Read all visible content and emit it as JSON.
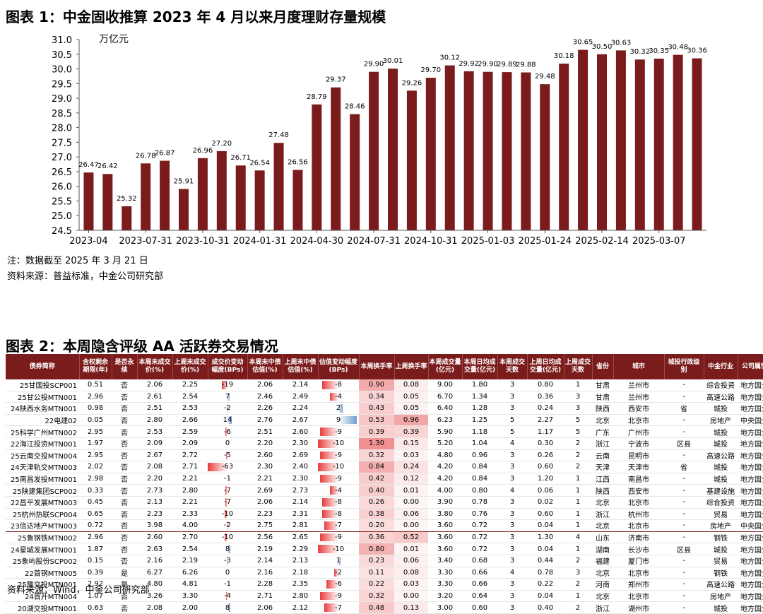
{
  "figure1": {
    "title": "图表 1：中金固收推算 2023 年 4 月以来月度理财存量规模",
    "note": "注：数据截至 2025 年 3 月 21 日",
    "source": "资料来源：普益标准，中金公司研究部"
  },
  "chart_data": {
    "type": "bar",
    "unit_label": "万亿元",
    "values": [
      26.47,
      26.42,
      25.32,
      26.78,
      26.87,
      25.91,
      26.96,
      27.2,
      26.71,
      26.54,
      27.48,
      26.56,
      28.79,
      29.37,
      28.46,
      29.9,
      30.01,
      29.26,
      29.7,
      30.12,
      29.92,
      29.9,
      29.89,
      29.88,
      29.48,
      30.18,
      30.65,
      30.5,
      30.63,
      30.32,
      30.35,
      30.48,
      30.36
    ],
    "x_tick_labels": [
      "2023-04",
      "2023-07-31",
      "2023-10-31",
      "2024-01-31",
      "2024-04-30",
      "2024-07-31",
      "2024-10-31",
      "2025-01-03",
      "2025-01-24",
      "2025-02-14",
      "2025-03-07"
    ],
    "x_tick_positions": [
      0,
      3,
      6,
      9,
      12,
      15,
      18,
      21,
      24,
      27,
      30
    ],
    "y_ticks": [
      "31.0",
      "30.5",
      "30.0",
      "29.5",
      "29.0",
      "28.5",
      "28.0",
      "27.5",
      "27.0",
      "26.5",
      "26.0",
      "25.5",
      "25.0",
      "24.5"
    ],
    "ylim": [
      24.5,
      31.0
    ],
    "grid": false,
    "bar_color": "#7b1c1c"
  },
  "figure2": {
    "title": "图表 2：本周隐含评级 AA 活跃券交易情况",
    "source": "资料来源：Wind，中金公司研究部",
    "headers": [
      "债券简称",
      "含权剩余期限(年)",
      "是否永续",
      "本周末成交价(%)",
      "上周末成交价(%)",
      "成交价变动幅度(BPs)",
      "本周末中债估值(%)",
      "上周末中债估值(%)",
      "估值变动幅度(BPs)",
      "本周换手率",
      "上周换手率",
      "本周成交量(亿元)",
      "本周日均成交量(亿元)",
      "本周成交天数",
      "上周日均成交量(亿元)",
      "上周成交天数",
      "省份",
      "城市",
      "城投行政级别",
      "中金行业",
      "公司属性"
    ],
    "rows": [
      [
        "25甘国投SCP001",
        "0.51",
        "否",
        "2.06",
        "2.25",
        "-19",
        "2.06",
        "2.14",
        "-8",
        "0.90",
        "0.08",
        "9.00",
        "1.80",
        "3",
        "0.80",
        "1",
        "甘肃",
        "兰州市",
        "-",
        "综合投资",
        "地方国企"
      ],
      [
        "25甘公投MTN001",
        "2.96",
        "否",
        "2.61",
        "2.54",
        "7",
        "2.46",
        "2.49",
        "-4",
        "0.34",
        "0.05",
        "6.70",
        "1.34",
        "3",
        "0.36",
        "3",
        "甘肃",
        "兰州市",
        "-",
        "高速公路",
        "地方国企"
      ],
      [
        "24陕西水务MTN001",
        "0.98",
        "否",
        "2.51",
        "2.53",
        "-2",
        "2.26",
        "2.24",
        "2",
        "0.43",
        "0.05",
        "6.40",
        "1.28",
        "3",
        "0.24",
        "3",
        "陕西",
        "西安市",
        "省",
        "城投",
        "地方国企"
      ],
      [
        "22电建02",
        "0.05",
        "否",
        "2.80",
        "2.66",
        "14",
        "2.76",
        "2.67",
        "9",
        "0.53",
        "0.96",
        "6.23",
        "1.25",
        "5",
        "2.27",
        "5",
        "北京",
        "北京市",
        "-",
        "房地产",
        "中央国企"
      ],
      [
        "25科学广州MTN002",
        "2.95",
        "否",
        "2.53",
        "2.59",
        "-6",
        "2.51",
        "2.60",
        "-9",
        "0.39",
        "0.39",
        "5.90",
        "1.18",
        "5",
        "1.17",
        "5",
        "广东",
        "广州市",
        "-",
        "城投",
        "地方国企"
      ],
      [
        "22海江投资MTN001",
        "1.97",
        "否",
        "2.09",
        "2.09",
        "0",
        "2.20",
        "2.30",
        "-10",
        "1.30",
        "0.15",
        "5.20",
        "1.04",
        "4",
        "0.30",
        "2",
        "浙江",
        "宁波市",
        "区县",
        "城投",
        "地方国企"
      ],
      [
        "25云南交投MTN004",
        "2.95",
        "否",
        "2.67",
        "2.72",
        "-5",
        "2.60",
        "2.69",
        "-9",
        "0.32",
        "0.03",
        "4.80",
        "0.96",
        "3",
        "0.26",
        "2",
        "云南",
        "昆明市",
        "-",
        "高速公路",
        "地方国企"
      ],
      [
        "24天津轨交MTN003",
        "2.02",
        "否",
        "2.08",
        "2.71",
        "-63",
        "2.30",
        "2.40",
        "-10",
        "0.84",
        "0.24",
        "4.20",
        "0.84",
        "3",
        "0.60",
        "2",
        "天津",
        "天津市",
        "省",
        "城投",
        "地方国企"
      ],
      [
        "25南昌发投MTN001",
        "2.98",
        "否",
        "2.20",
        "2.21",
        "-1",
        "2.21",
        "2.30",
        "-9",
        "0.42",
        "0.12",
        "4.20",
        "0.84",
        "3",
        "1.20",
        "1",
        "江西",
        "南昌市",
        "-",
        "城投",
        "地方国企"
      ],
      [
        "25陕建集团SCP002",
        "0.33",
        "否",
        "2.73",
        "2.80",
        "-7",
        "2.69",
        "2.73",
        "-4",
        "0.40",
        "0.01",
        "4.00",
        "0.80",
        "4",
        "0.06",
        "1",
        "陕西",
        "西安市",
        "-",
        "基建设施",
        "地方国企"
      ],
      [
        "22昌平发展MTN003",
        "0.45",
        "否",
        "2.13",
        "2.21",
        "-7",
        "2.06",
        "2.14",
        "-8",
        "0.26",
        "0.00",
        "3.90",
        "0.78",
        "3",
        "0.02",
        "1",
        "北京",
        "北京市",
        "-",
        "综合投资",
        "地方国企"
      ],
      [
        "25杭州热联SCP004",
        "0.65",
        "否",
        "2.23",
        "2.33",
        "-10",
        "2.23",
        "2.31",
        "-8",
        "0.38",
        "0.06",
        "3.80",
        "0.76",
        "3",
        "0.60",
        "1",
        "浙江",
        "杭州市",
        "-",
        "贸易",
        "地方国企"
      ],
      [
        "23信达地产MTN003",
        "0.72",
        "否",
        "3.98",
        "4.00",
        "-2",
        "2.75",
        "2.81",
        "-7",
        "0.20",
        "0.00",
        "3.60",
        "0.72",
        "3",
        "0.04",
        "1",
        "北京",
        "北京市",
        "-",
        "房地产",
        "中央国企"
      ],
      [
        "25鲁钢铁MTN002",
        "2.96",
        "否",
        "2.60",
        "2.70",
        "-10",
        "2.56",
        "2.65",
        "-9",
        "0.36",
        "0.52",
        "3.60",
        "0.72",
        "3",
        "1.30",
        "4",
        "山东",
        "济南市",
        "-",
        "钢铁",
        "地方国企"
      ],
      [
        "24星城发展MTN001",
        "1.87",
        "否",
        "2.63",
        "2.54",
        "8",
        "2.19",
        "2.29",
        "-10",
        "0.80",
        "0.01",
        "3.60",
        "0.72",
        "3",
        "0.04",
        "1",
        "湖南",
        "长沙市",
        "区县",
        "城投",
        "地方国企"
      ],
      [
        "25象屿股份SCP002",
        "0.15",
        "否",
        "2.16",
        "2.19",
        "-3",
        "2.14",
        "2.13",
        "1",
        "0.23",
        "0.06",
        "3.40",
        "0.68",
        "3",
        "0.44",
        "2",
        "福建",
        "厦门市",
        "-",
        "贸易",
        "地方国企"
      ],
      [
        "22首钢MTN005",
        "0.39",
        "是",
        "6.27",
        "6.26",
        "0",
        "2.16",
        "2.18",
        "-2",
        "0.11",
        "0.08",
        "3.30",
        "0.66",
        "4",
        "0.78",
        "3",
        "北京",
        "北京市",
        "-",
        "钢铁",
        "地方国企"
      ],
      [
        "25豫交投MTN001",
        "2.92",
        "是",
        "4.80",
        "4.81",
        "-1",
        "2.28",
        "2.35",
        "-6",
        "0.22",
        "0.03",
        "3.30",
        "0.66",
        "3",
        "0.22",
        "2",
        "河南",
        "郑州市",
        "-",
        "高速公路",
        "地方国企"
      ],
      [
        "24首开MTN004",
        "1.07",
        "否",
        "3.26",
        "3.30",
        "-4",
        "2.71",
        "2.80",
        "-9",
        "0.32",
        "0.00",
        "3.20",
        "0.64",
        "3",
        "0.04",
        "1",
        "北京",
        "北京市",
        "-",
        "房地产",
        "地方国企"
      ],
      [
        "20湖交投MTN001",
        "0.63",
        "否",
        "2.08",
        "2.00",
        "8",
        "2.06",
        "2.12",
        "-7",
        "0.48",
        "0.13",
        "3.00",
        "0.60",
        "3",
        "0.40",
        "2",
        "浙江",
        "湖州市",
        "-",
        "城投",
        "地方国企"
      ]
    ]
  }
}
